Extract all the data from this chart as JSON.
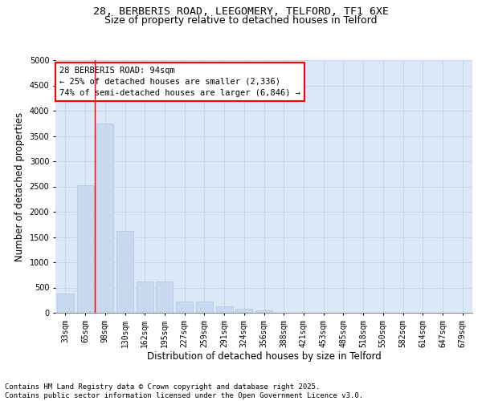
{
  "title_line1": "28, BERBERIS ROAD, LEEGOMERY, TELFORD, TF1 6XE",
  "title_line2": "Size of property relative to detached houses in Telford",
  "xlabel": "Distribution of detached houses by size in Telford",
  "ylabel": "Number of detached properties",
  "categories": [
    "33sqm",
    "65sqm",
    "98sqm",
    "130sqm",
    "162sqm",
    "195sqm",
    "227sqm",
    "259sqm",
    "291sqm",
    "324sqm",
    "356sqm",
    "388sqm",
    "421sqm",
    "453sqm",
    "485sqm",
    "518sqm",
    "550sqm",
    "582sqm",
    "614sqm",
    "647sqm",
    "679sqm"
  ],
  "values": [
    380,
    2530,
    3740,
    1620,
    620,
    620,
    230,
    220,
    130,
    85,
    50,
    0,
    0,
    0,
    0,
    0,
    0,
    0,
    0,
    0,
    0
  ],
  "bar_color": "#c8d8ee",
  "bar_edgecolor": "#b0c4de",
  "vline_color": "red",
  "vline_position": 1.5,
  "annotation_text": "28 BERBERIS ROAD: 94sqm\n← 25% of detached houses are smaller (2,336)\n74% of semi-detached houses are larger (6,846) →",
  "annotation_box_edgecolor": "red",
  "annotation_box_facecolor": "white",
  "ylim": [
    0,
    5000
  ],
  "yticks": [
    0,
    500,
    1000,
    1500,
    2000,
    2500,
    3000,
    3500,
    4000,
    4500,
    5000
  ],
  "grid_color": "#c8d4e8",
  "background_color": "#dce8f8",
  "footer_text": "Contains HM Land Registry data © Crown copyright and database right 2025.\nContains public sector information licensed under the Open Government Licence v3.0.",
  "title_fontsize": 9.5,
  "subtitle_fontsize": 9,
  "label_fontsize": 8.5,
  "tick_fontsize": 7,
  "footer_fontsize": 6.5,
  "annotation_fontsize": 7.5
}
